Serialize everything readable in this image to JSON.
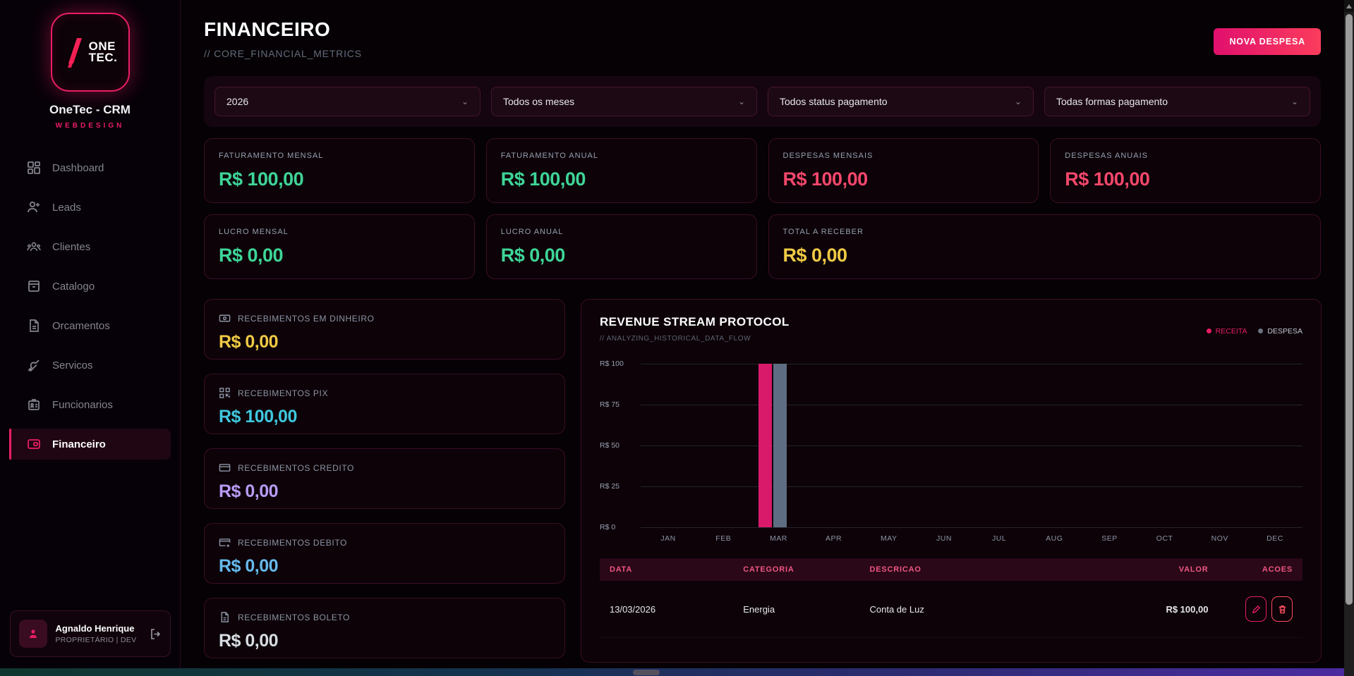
{
  "colors": {
    "accent": "#e91e63",
    "positive": "#3ed598",
    "negative": "#f5476b",
    "warning": "#f0ca45",
    "bar_receita": "#d91a6b",
    "bar_despesa": "#5f6d82"
  },
  "sidebar": {
    "brand": {
      "logo_line1": "ONE",
      "logo_line2": "TEC.",
      "title": "OneTec - CRM",
      "subtitle": "WEBDESIGN"
    },
    "items": [
      {
        "label": "Dashboard"
      },
      {
        "label": "Leads"
      },
      {
        "label": "Clientes"
      },
      {
        "label": "Catalogo"
      },
      {
        "label": "Orcamentos"
      },
      {
        "label": "Servicos"
      },
      {
        "label": "Funcionarios"
      },
      {
        "label": "Financeiro"
      }
    ],
    "user": {
      "name": "Agnaldo Henrique",
      "role": "PROPRIETÁRIO | DEV"
    }
  },
  "header": {
    "title": "FINANCEIRO",
    "subtitle": "// CORE_FINANCIAL_METRICS",
    "new_expense_button": "NOVA DESPESA"
  },
  "filters": {
    "year": "2026",
    "month": "Todos os meses",
    "status": "Todos status pagamento",
    "method": "Todas formas pagamento"
  },
  "metrics": [
    {
      "label": "FATURAMENTO MENSAL",
      "value": "R$ 100,00"
    },
    {
      "label": "FATURAMENTO ANUAL",
      "value": "R$ 100,00"
    },
    {
      "label": "DESPESAS MENSAIS",
      "value": "R$ 100,00"
    },
    {
      "label": "DESPESAS ANUAIS",
      "value": "R$ 100,00"
    },
    {
      "label": "LUCRO MENSAL",
      "value": "R$ 0,00"
    },
    {
      "label": "LUCRO ANUAL",
      "value": "R$ 0,00"
    },
    {
      "label": "TOTAL A RECEBER",
      "value": "R$ 0,00"
    }
  ],
  "receipts": [
    {
      "label": "RECEBIMENTOS EM DINHEIRO",
      "value": "R$ 0,00"
    },
    {
      "label": "RECEBIMENTOS PIX",
      "value": "R$ 100,00"
    },
    {
      "label": "RECEBIMENTOS CREDITO",
      "value": "R$ 0,00"
    },
    {
      "label": "RECEBIMENTOS DEBITO",
      "value": "R$ 0,00"
    },
    {
      "label": "RECEBIMENTOS BOLETO",
      "value": "R$ 0,00"
    }
  ],
  "chart": {
    "title": "REVENUE STREAM PROTOCOL",
    "subtitle": "// ANALYZING_HISTORICAL_DATA_FLOW",
    "legend": [
      {
        "label": "RECEITA"
      },
      {
        "label": "DESPESA"
      }
    ],
    "y_ticks": [
      "R$ 100",
      "R$ 75",
      "R$ 50",
      "R$ 25",
      "R$ 0"
    ],
    "chart_data": {
      "type": "bar",
      "categories": [
        "JAN",
        "FEB",
        "MAR",
        "APR",
        "MAY",
        "JUN",
        "JUL",
        "AUG",
        "SEP",
        "OCT",
        "NOV",
        "DEC"
      ],
      "series": [
        {
          "name": "RECEITA",
          "color": "#d91a6b",
          "values": [
            0,
            0,
            100,
            0,
            0,
            0,
            0,
            0,
            0,
            0,
            0,
            0
          ]
        },
        {
          "name": "DESPESA",
          "color": "#5f6d82",
          "values": [
            0,
            0,
            100,
            0,
            0,
            0,
            0,
            0,
            0,
            0,
            0,
            0
          ]
        }
      ],
      "ylim": [
        0,
        100
      ],
      "grid": true,
      "legend_position": "top-right"
    }
  },
  "table": {
    "headers": [
      "DATA",
      "CATEGORIA",
      "DESCRICAO",
      "VALOR",
      "ACOES"
    ],
    "rows": [
      {
        "date": "13/03/2026",
        "category": "Energia",
        "description": "Conta de Luz",
        "value": "R$ 100,00"
      }
    ]
  }
}
